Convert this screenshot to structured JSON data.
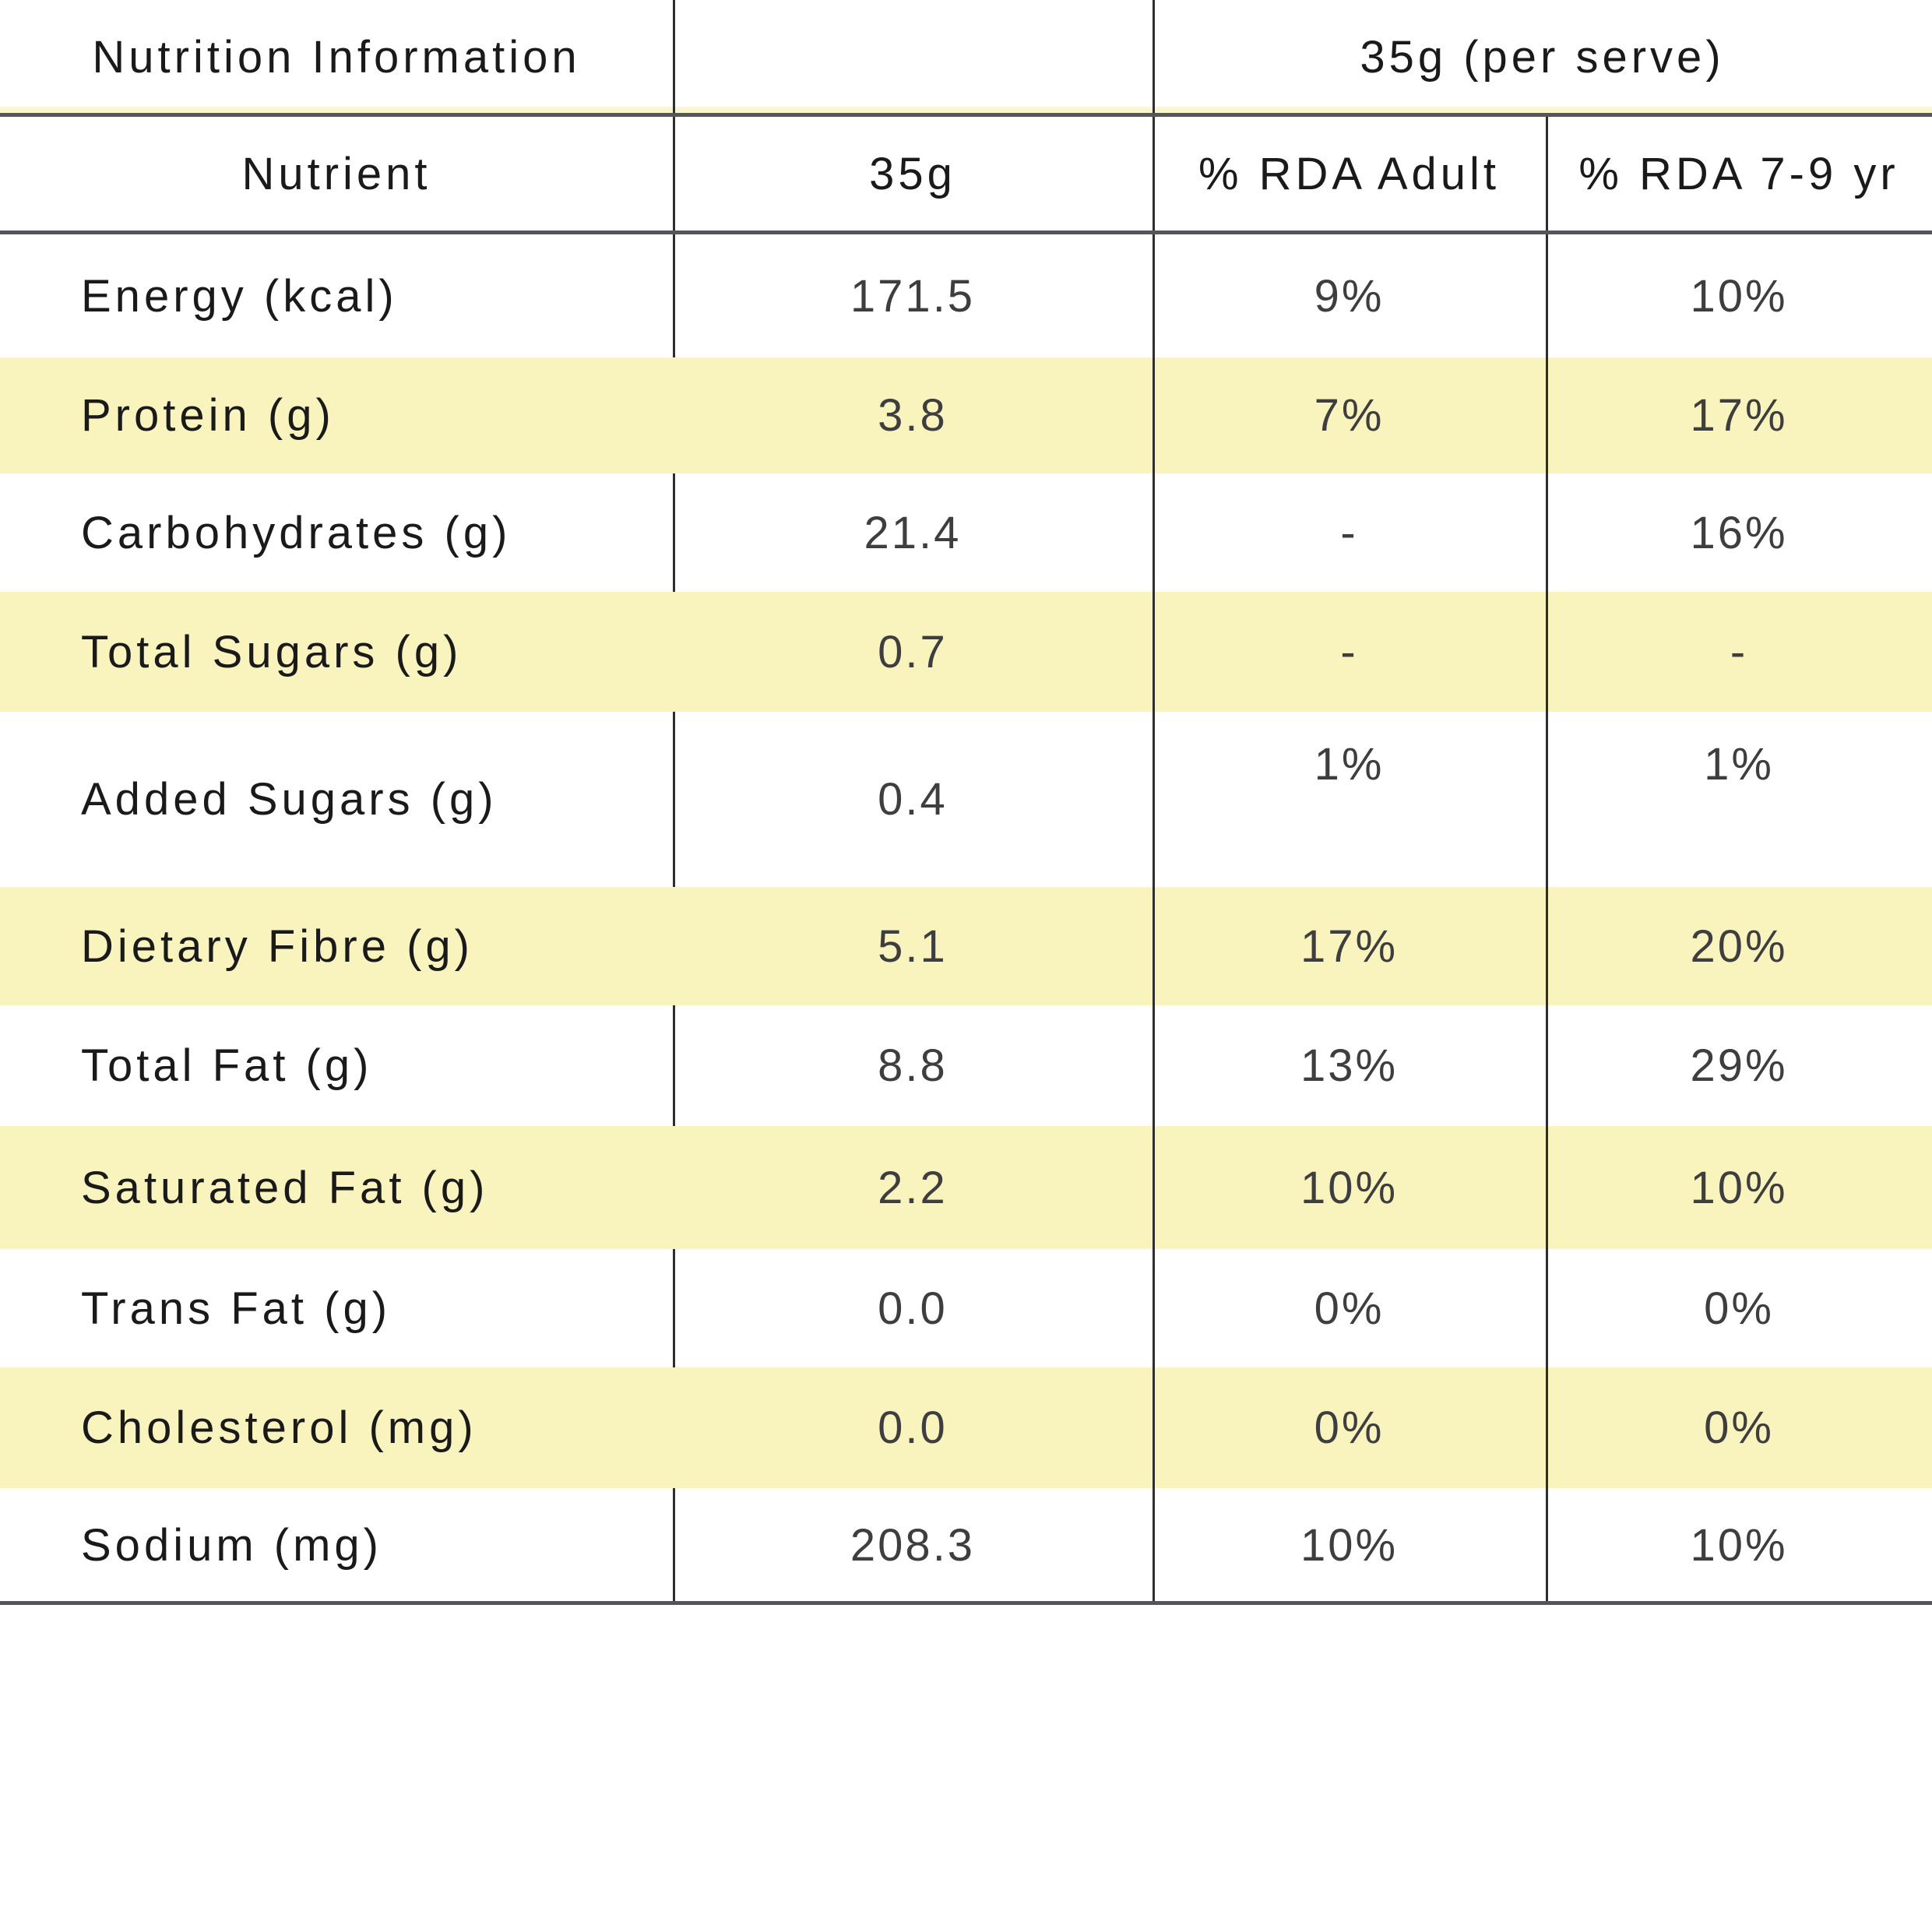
{
  "table": {
    "title": "Nutrition Information",
    "serving_header": "35g (per serve)",
    "columns": [
      "Nutrient",
      "35g",
      "% RDA Adult",
      "% RDA 7-9 yr"
    ],
    "rows": [
      {
        "label": "Energy (kcal)",
        "value": "171.5",
        "rda_adult": "9%",
        "rda_child": "10%",
        "highlight": false
      },
      {
        "label": "Protein (g)",
        "value": "3.8",
        "rda_adult": "7%",
        "rda_child": "17%",
        "highlight": true
      },
      {
        "label": "Carbohydrates (g)",
        "value": "21.4",
        "rda_adult": "-",
        "rda_child": "16%",
        "highlight": false
      },
      {
        "label": "Total Sugars (g)",
        "value": "0.7",
        "rda_adult": "-",
        "rda_child": "-",
        "highlight": true
      },
      {
        "label": "Added Sugars (g)",
        "value": "0.4",
        "rda_adult": "1%",
        "rda_child": "1%",
        "highlight": false
      },
      {
        "label": "Dietary Fibre (g)",
        "value": "5.1",
        "rda_adult": "17%",
        "rda_child": "20%",
        "highlight": true
      },
      {
        "label": "Total Fat (g)",
        "value": "8.8",
        "rda_adult": "13%",
        "rda_child": "29%",
        "highlight": false
      },
      {
        "label": "Saturated Fat (g)",
        "value": "2.2",
        "rda_adult": "10%",
        "rda_child": "10%",
        "highlight": true
      },
      {
        "label": "Trans Fat (g)",
        "value": "0.0",
        "rda_adult": "0%",
        "rda_child": "0%",
        "highlight": false
      },
      {
        "label": "Cholesterol (mg)",
        "value": "0.0",
        "rda_adult": "0%",
        "rda_child": "0%",
        "highlight": true
      },
      {
        "label": "Sodium (mg)",
        "value": "208.3",
        "rda_adult": "10%",
        "rda_child": "10%",
        "highlight": false
      }
    ],
    "colors": {
      "highlight": "#F9F4BD",
      "highlight_soft": "#FAF7CF",
      "grid": "#55565A",
      "vline": "#2E2E2E",
      "ink": "#1A1A1A",
      "ink_value": "#3E3E40"
    }
  }
}
